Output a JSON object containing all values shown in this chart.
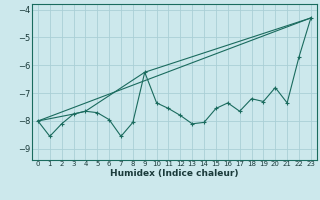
{
  "xlabel": "Humidex (Indice chaleur)",
  "bg_color": "#cce8ec",
  "line_color": "#1a6b5e",
  "grid_color": "#aacfd6",
  "xlim": [
    -0.5,
    23.5
  ],
  "ylim": [
    -9.4,
    -3.8
  ],
  "yticks": [
    -9,
    -8,
    -7,
    -6,
    -5,
    -4
  ],
  "xticks": [
    0,
    1,
    2,
    3,
    4,
    5,
    6,
    7,
    8,
    9,
    10,
    11,
    12,
    13,
    14,
    15,
    16,
    17,
    18,
    19,
    20,
    21,
    22,
    23
  ],
  "line1_x": [
    0,
    1,
    2,
    3,
    4,
    5,
    6,
    7,
    8,
    9,
    10,
    11,
    12,
    13,
    14,
    15,
    16,
    17,
    18,
    19,
    20,
    21,
    22,
    23
  ],
  "line1_y": [
    -8.0,
    -8.55,
    -8.1,
    -7.75,
    -7.65,
    -7.7,
    -7.95,
    -8.55,
    -8.05,
    -6.25,
    -7.35,
    -7.55,
    -7.8,
    -8.1,
    -8.05,
    -7.55,
    -7.35,
    -7.65,
    -7.2,
    -7.3,
    -6.8,
    -7.35,
    -5.7,
    -4.3
  ],
  "line2_x": [
    0,
    3,
    4,
    9,
    23
  ],
  "line2_y": [
    -8.0,
    -7.75,
    -7.65,
    -6.25,
    -4.3
  ],
  "line3_x": [
    0,
    23
  ],
  "line3_y": [
    -8.0,
    -4.3
  ]
}
